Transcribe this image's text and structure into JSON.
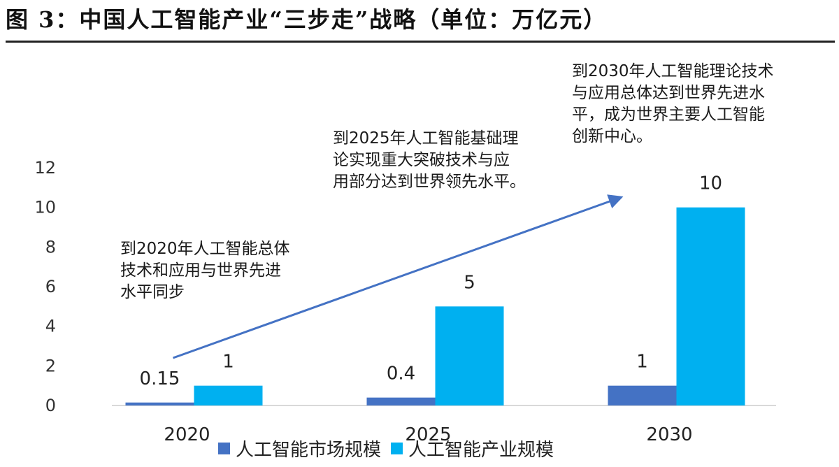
{
  "header": {
    "title": "图 3：中国人工智能产业“三步走”战略（单位：万亿元）"
  },
  "colors": {
    "market": "#4472c4",
    "industry": "#00b0f0",
    "arrow": "#4472c4",
    "axis_text": "#333333"
  },
  "annotations": [
    "到2020年人工智能总体\n技术和应用与世界先进\n水平同步",
    "到2025年人工智能基础理\n论实现重大突破技术与应\n用部分达到世界领先水平。",
    "到2030年人工智能理论技术\n与应用总体达到世界先进水\n平，成为世界主要人工智能\n创新中心。"
  ],
  "chart_data": {
    "type": "bar",
    "categories": [
      "2020",
      "2025",
      "2030"
    ],
    "series": [
      {
        "name": "人工智能市场规模",
        "values": [
          0.15,
          0.4,
          1
        ],
        "labels": [
          "0.15",
          "0.4",
          "1"
        ],
        "color": "#4472c4"
      },
      {
        "name": "人工智能产业规模",
        "values": [
          1,
          5,
          10
        ],
        "labels": [
          "1",
          "5",
          "10"
        ],
        "color": "#00b0f0"
      }
    ],
    "ylim": [
      0,
      12
    ],
    "yticks": [
      0,
      2,
      4,
      6,
      8,
      10,
      12
    ],
    "grid": false,
    "legend": "bottom",
    "arrow": {
      "from": {
        "category": "2020",
        "value": 2.4
      },
      "to": {
        "category": "2030",
        "value": 10.5
      }
    }
  }
}
